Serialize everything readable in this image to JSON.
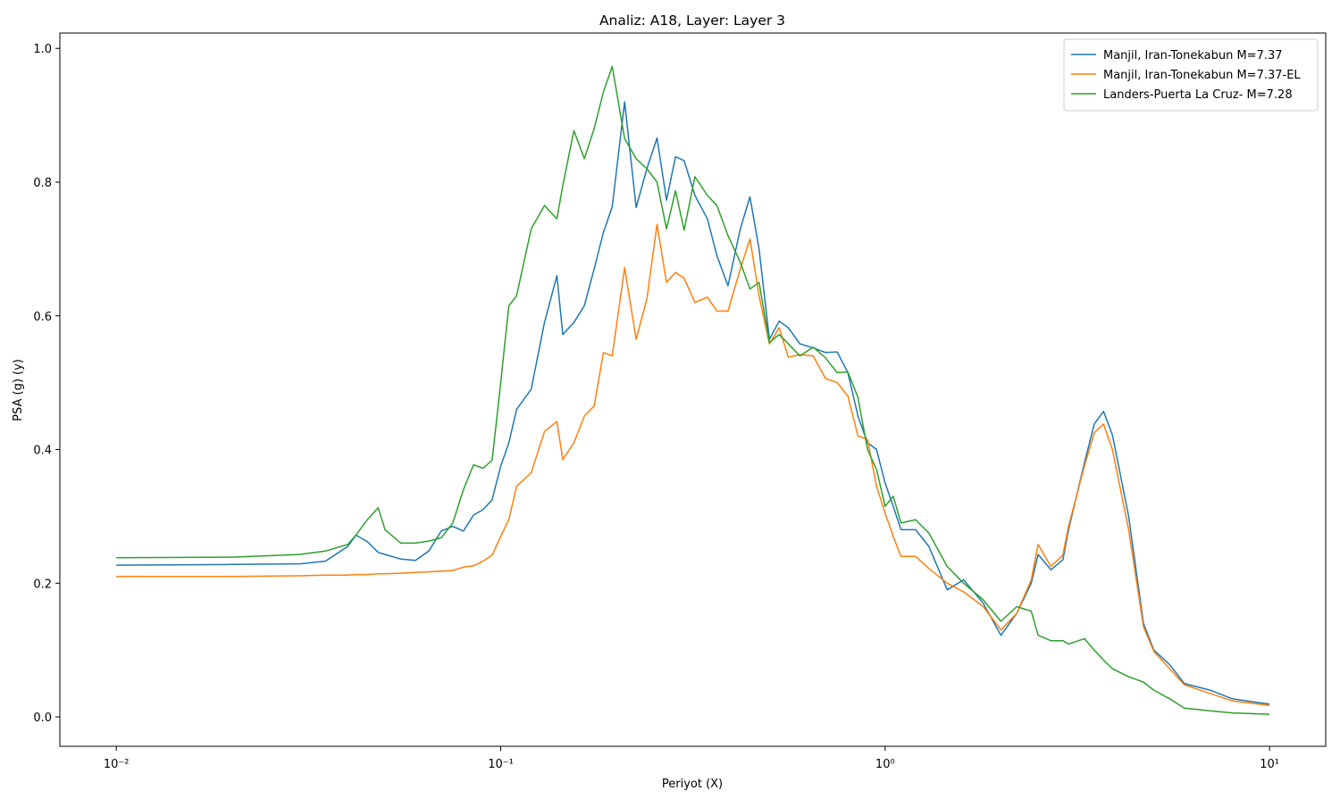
{
  "chart_data": {
    "type": "line",
    "title": "Analiz: A18, Layer: Layer 3",
    "xlabel": "Periyot (X)",
    "ylabel": "PSA (g) (y)",
    "xscale": "log",
    "xlim": [
      0.00713,
      14.0
    ],
    "ylim": [
      -0.044,
      1.023
    ],
    "xticks": [
      {
        "value": 0.01,
        "label": "10⁻²"
      },
      {
        "value": 0.1,
        "label": "10⁻¹"
      },
      {
        "value": 1,
        "label": "10⁰"
      },
      {
        "value": 10,
        "label": "10¹"
      }
    ],
    "yticks": [
      {
        "value": 0,
        "label": "0.0"
      },
      0.2,
      0.4,
      0.6,
      0.8,
      {
        "value": 1,
        "label": "1.0"
      }
    ],
    "legend": "upper right",
    "x": [
      0.01,
      0.02,
      0.03,
      0.035,
      0.04,
      0.042,
      0.045,
      0.048,
      0.05,
      0.055,
      0.06,
      0.065,
      0.07,
      0.075,
      0.08,
      0.085,
      0.09,
      0.095,
      0.1,
      0.105,
      0.11,
      0.12,
      0.13,
      0.14,
      0.145,
      0.155,
      0.165,
      0.175,
      0.185,
      0.195,
      0.21,
      0.225,
      0.24,
      0.255,
      0.27,
      0.285,
      0.3,
      0.32,
      0.345,
      0.365,
      0.39,
      0.42,
      0.445,
      0.47,
      0.5,
      0.53,
      0.56,
      0.6,
      0.65,
      0.7,
      0.75,
      0.8,
      0.85,
      0.9,
      0.95,
      1.0,
      1.05,
      1.1,
      1.2,
      1.3,
      1.45,
      1.6,
      1.8,
      2.0,
      2.2,
      2.4,
      2.5,
      2.7,
      2.9,
      3.0,
      3.3,
      3.5,
      3.7,
      3.9,
      4.3,
      4.7,
      5.0,
      5.5,
      6.0,
      7.0,
      8.0,
      10.0
    ],
    "series": [
      {
        "name": "Manjil, Iran-Tonekabun M=7.37",
        "color": "#1f77b4",
        "values": [
          0.227,
          0.228,
          0.229,
          0.233,
          0.255,
          0.272,
          0.262,
          0.246,
          0.243,
          0.236,
          0.234,
          0.248,
          0.278,
          0.285,
          0.278,
          0.302,
          0.31,
          0.325,
          0.375,
          0.41,
          0.46,
          0.49,
          0.59,
          0.66,
          0.572,
          0.59,
          0.615,
          0.67,
          0.725,
          0.763,
          0.92,
          0.762,
          0.82,
          0.866,
          0.773,
          0.838,
          0.832,
          0.78,
          0.745,
          0.69,
          0.645,
          0.73,
          0.778,
          0.7,
          0.565,
          0.592,
          0.582,
          0.558,
          0.552,
          0.545,
          0.546,
          0.515,
          0.45,
          0.41,
          0.4,
          0.35,
          0.315,
          0.28,
          0.28,
          0.255,
          0.19,
          0.205,
          0.17,
          0.122,
          0.155,
          0.2,
          0.243,
          0.22,
          0.235,
          0.28,
          0.38,
          0.438,
          0.457,
          0.422,
          0.3,
          0.14,
          0.1,
          0.078,
          0.05,
          0.04,
          0.027,
          0.019
        ]
      },
      {
        "name": "Manjil, Iran-Tonekabun M=7.37-EL",
        "color": "#ff7f0e",
        "values": [
          0.21,
          0.21,
          0.211,
          0.212,
          0.212,
          0.213,
          0.213,
          0.214,
          0.214,
          0.215,
          0.216,
          0.217,
          0.218,
          0.219,
          0.224,
          0.226,
          0.233,
          0.242,
          0.27,
          0.295,
          0.345,
          0.365,
          0.427,
          0.442,
          0.385,
          0.41,
          0.45,
          0.465,
          0.545,
          0.54,
          0.672,
          0.565,
          0.625,
          0.737,
          0.65,
          0.665,
          0.656,
          0.62,
          0.628,
          0.607,
          0.607,
          0.67,
          0.715,
          0.63,
          0.558,
          0.582,
          0.538,
          0.542,
          0.54,
          0.506,
          0.5,
          0.48,
          0.42,
          0.415,
          0.345,
          0.305,
          0.27,
          0.24,
          0.24,
          0.222,
          0.2,
          0.187,
          0.165,
          0.13,
          0.155,
          0.205,
          0.258,
          0.225,
          0.242,
          0.285,
          0.375,
          0.425,
          0.438,
          0.4,
          0.28,
          0.135,
          0.098,
          0.072,
          0.048,
          0.035,
          0.024,
          0.017
        ]
      },
      {
        "name": "Landers-Puerta La Cruz- M=7.28",
        "color": "#2ca02c",
        "values": [
          0.238,
          0.239,
          0.243,
          0.248,
          0.258,
          0.272,
          0.295,
          0.313,
          0.28,
          0.26,
          0.26,
          0.263,
          0.268,
          0.29,
          0.34,
          0.377,
          0.372,
          0.384,
          0.5,
          0.615,
          0.63,
          0.73,
          0.765,
          0.745,
          0.795,
          0.877,
          0.835,
          0.88,
          0.935,
          0.973,
          0.865,
          0.835,
          0.82,
          0.8,
          0.73,
          0.787,
          0.728,
          0.808,
          0.78,
          0.765,
          0.72,
          0.68,
          0.64,
          0.65,
          0.56,
          0.572,
          0.558,
          0.54,
          0.553,
          0.537,
          0.515,
          0.516,
          0.478,
          0.4,
          0.37,
          0.315,
          0.33,
          0.29,
          0.295,
          0.275,
          0.225,
          0.2,
          0.175,
          0.143,
          0.165,
          0.158,
          0.122,
          0.114,
          0.114,
          0.109,
          0.117,
          0.1,
          0.085,
          0.072,
          0.06,
          0.052,
          0.04,
          0.027,
          0.013,
          0.009,
          0.006,
          0.004
        ]
      }
    ]
  }
}
